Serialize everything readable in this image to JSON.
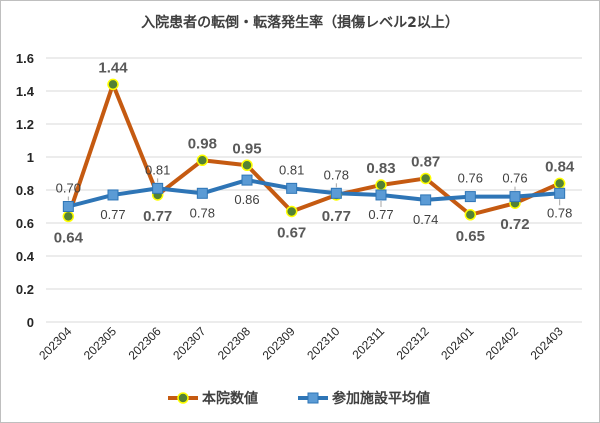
{
  "chart_data": {
    "type": "line",
    "title": "入院患者の転倒・転落発生率（損傷レベル2以上）",
    "categories": [
      "202304",
      "202305",
      "202306",
      "202307",
      "202308",
      "202309",
      "202310",
      "202311",
      "202312",
      "202401",
      "202402",
      "202403"
    ],
    "ylim": [
      0,
      1.6
    ],
    "yticks": [
      "0",
      "0.2",
      "0.4",
      "0.6",
      "0.8",
      "1",
      "1.2",
      "1.4",
      "1.6"
    ],
    "grid": true,
    "legend_position": "bottom",
    "series": [
      {
        "name": "本院数値",
        "color": "#c55a11",
        "marker_color": "#548235",
        "values": [
          0.64,
          1.44,
          0.77,
          0.98,
          0.95,
          0.67,
          0.77,
          0.83,
          0.87,
          0.65,
          0.72,
          0.84
        ],
        "labels": [
          "0.64",
          "1.44",
          "0.77",
          "0.98",
          "0.95",
          "0.67",
          "0.77",
          "0.83",
          "0.87",
          "0.65",
          "0.72",
          "0.84"
        ]
      },
      {
        "name": "参加施設平均値",
        "color": "#2e75b6",
        "marker_color": "#5b9bd5",
        "values": [
          0.7,
          0.77,
          0.81,
          0.78,
          0.86,
          0.81,
          0.78,
          0.77,
          0.74,
          0.76,
          0.76,
          0.78
        ],
        "labels": [
          "0.70",
          "0.77",
          "0.81",
          "0.78",
          "0.86",
          "0.81",
          "0.78",
          "0.77",
          "0.74",
          "0.76",
          "0.76",
          "0.78"
        ]
      }
    ]
  }
}
